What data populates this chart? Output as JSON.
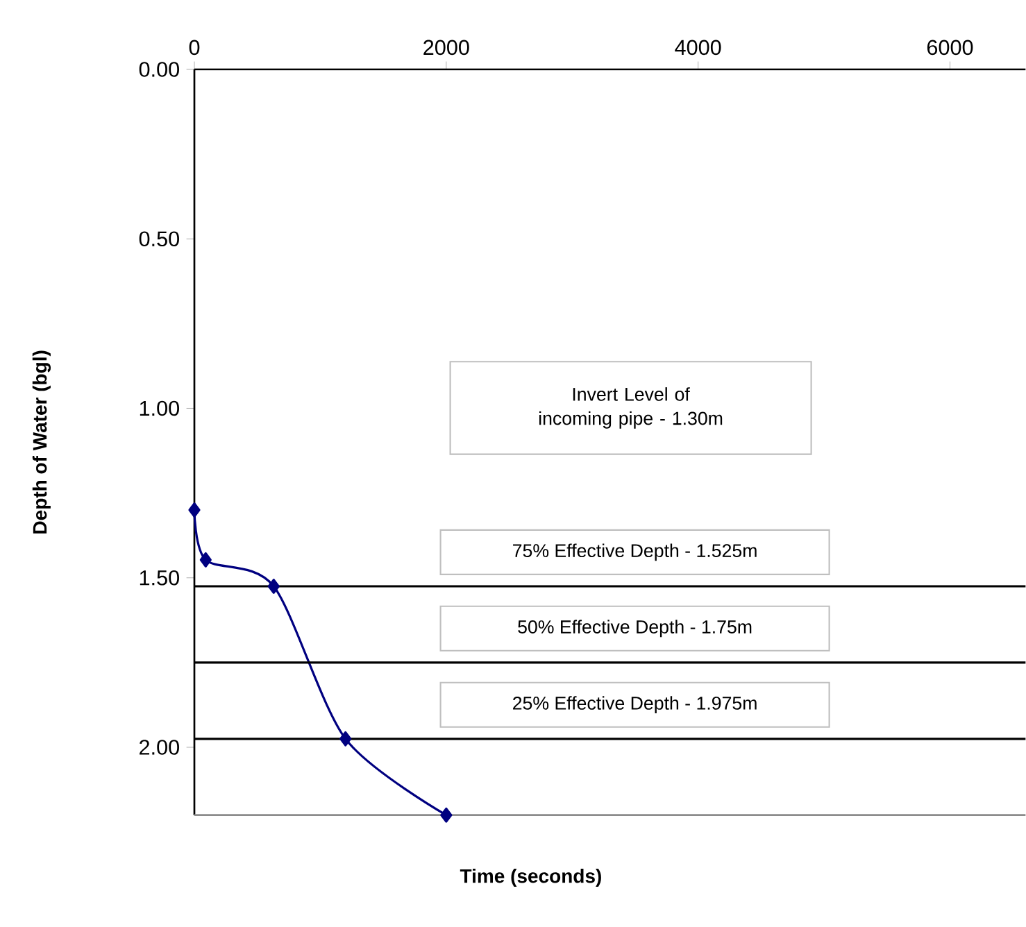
{
  "chart_data": {
    "type": "line",
    "xlabel": "Time (seconds)",
    "ylabel": "Depth of Water (bgl)",
    "x": [
      0,
      90,
      630,
      1200,
      2000
    ],
    "series": [
      {
        "color": "#000080",
        "values": [
          1.3,
          1.447,
          1.525,
          1.975,
          2.2
        ]
      }
    ],
    "marker": "diamond",
    "line_style": "solid",
    "xlim": [
      0,
      6600
    ],
    "xticks": [
      0,
      2000,
      4000,
      6000
    ],
    "ylim": [
      2.2,
      0
    ],
    "yticks": [
      {
        "value": 0,
        "label": "0.00"
      },
      {
        "value": 0.5,
        "label": "0.50"
      },
      {
        "value": 1,
        "label": "1.00"
      },
      {
        "value": 1.5,
        "label": "1.50"
      },
      {
        "value": 2,
        "label": "2.00"
      }
    ],
    "ref_lines": [
      {
        "axis": "y",
        "value": 1.525,
        "label": "75% Effective Depth - 1.525m",
        "color": "#000000"
      },
      {
        "axis": "y",
        "value": 1.75,
        "label": "50% Effective Depth - 1.75m",
        "color": "#000000"
      },
      {
        "axis": "y",
        "value": 1.975,
        "label": "25% Effective Depth - 1.975m",
        "color": "#000000"
      }
    ],
    "annotations": [
      "Invert Level of incoming pipe - 1.30m"
    ]
  }
}
